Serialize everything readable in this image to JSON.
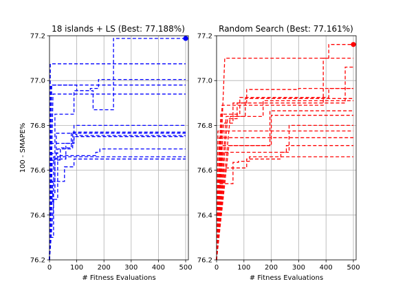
{
  "figure": {
    "background": "#ffffff"
  },
  "chart_data": [
    {
      "type": "line",
      "title": "18 islands + LS (Best: 77.188%)",
      "xlabel": "# Fitness Evaluations",
      "ylabel": "100 - SMAPE%",
      "xlim": [
        0,
        510
      ],
      "ylim": [
        76.2,
        77.2
      ],
      "xticks": [
        0,
        100,
        200,
        300,
        400,
        500
      ],
      "yticks": [
        76.2,
        76.4,
        76.6,
        76.8,
        77.0,
        77.2
      ],
      "ytick_labels": [
        "76.2",
        "76.4",
        "76.6",
        "76.8",
        "77.0",
        "77.2"
      ],
      "grid": true,
      "line_style": "dashed",
      "color": "#0000ff",
      "best_marker": {
        "x": 500,
        "y": 77.188
      },
      "series": [
        {
          "x": [
            0,
            3,
            500
          ],
          "y": [
            76.2,
            77.075,
            77.075
          ]
        },
        {
          "x": [
            0,
            5,
            180,
            180,
            500
          ],
          "y": [
            76.2,
            76.98,
            76.98,
            77.005,
            77.005
          ]
        },
        {
          "x": [
            0,
            8,
            100,
            100,
            150,
            150,
            180,
            180,
            500
          ],
          "y": [
            76.2,
            76.98,
            76.98,
            76.955,
            76.955,
            76.965,
            76.965,
            76.98,
            76.98
          ]
        },
        {
          "x": [
            0,
            13,
            500
          ],
          "y": [
            76.2,
            76.94,
            76.94
          ]
        },
        {
          "x": [
            0,
            6,
            20,
            20,
            90,
            90,
            160,
            160,
            235,
            235,
            500
          ],
          "y": [
            76.2,
            76.55,
            76.55,
            76.85,
            76.85,
            76.955,
            76.955,
            76.87,
            76.87,
            77.188,
            77.188
          ]
        },
        {
          "x": [
            0,
            7,
            30,
            30,
            90,
            90,
            500
          ],
          "y": [
            76.2,
            76.72,
            76.72,
            76.72,
            76.72,
            76.8,
            76.8
          ]
        },
        {
          "x": [
            0,
            4,
            25,
            25,
            500
          ],
          "y": [
            76.2,
            76.65,
            76.65,
            76.765,
            76.765
          ]
        },
        {
          "x": [
            0,
            9,
            30,
            30,
            80,
            80,
            500
          ],
          "y": [
            76.2,
            76.675,
            76.675,
            76.695,
            76.695,
            76.77,
            76.77
          ]
        },
        {
          "x": [
            0,
            10,
            40,
            40,
            85,
            85,
            100,
            100,
            500
          ],
          "y": [
            76.2,
            76.645,
            76.645,
            76.7,
            76.7,
            76.76,
            76.76,
            76.755,
            76.755
          ]
        },
        {
          "x": [
            0,
            2,
            12,
            12,
            20,
            20,
            60,
            60,
            90,
            90,
            500
          ],
          "y": [
            76.2,
            76.45,
            76.45,
            76.5,
            76.5,
            76.65,
            76.65,
            76.72,
            76.72,
            76.75,
            76.75
          ]
        },
        {
          "x": [
            0,
            16,
            30,
            30,
            170,
            170,
            185,
            185,
            500
          ],
          "y": [
            76.2,
            76.47,
            76.47,
            76.665,
            76.665,
            76.68,
            76.68,
            76.695,
            76.695
          ]
        },
        {
          "x": [
            0,
            12,
            35,
            35,
            55,
            55,
            90,
            90,
            500
          ],
          "y": [
            76.2,
            76.55,
            76.55,
            76.55,
            76.55,
            76.615,
            76.615,
            76.65,
            76.65
          ]
        },
        {
          "x": [
            0,
            3,
            15,
            15,
            500
          ],
          "y": [
            76.2,
            76.3,
            76.3,
            76.66,
            76.66
          ]
        }
      ]
    },
    {
      "type": "line",
      "title": "Random Search (Best: 77.161%)",
      "xlabel": "# Fitness Evaluations",
      "ylabel": "",
      "xlim": [
        0,
        510
      ],
      "ylim": [
        76.2,
        77.2
      ],
      "xticks": [
        0,
        100,
        200,
        300,
        400,
        500
      ],
      "yticks": [
        76.2,
        76.4,
        76.6,
        76.8,
        77.0,
        77.2
      ],
      "ytick_labels": [
        "76.2",
        "76.4",
        "76.6",
        "76.8",
        "77.0",
        "77.2"
      ],
      "grid": true,
      "line_style": "dashed",
      "color": "#ff0000",
      "best_marker": {
        "x": 500,
        "y": 77.161
      },
      "series": [
        {
          "x": [
            0,
            20,
            390,
            390,
            410,
            410,
            500
          ],
          "y": [
            76.2,
            76.89,
            76.89,
            77.1,
            77.1,
            77.161,
            77.161
          ]
        },
        {
          "x": [
            0,
            30,
            500
          ],
          "y": [
            76.2,
            77.1,
            77.1
          ]
        },
        {
          "x": [
            0,
            40,
            75,
            75,
            110,
            110,
            300,
            300,
            500
          ],
          "y": [
            76.2,
            76.83,
            76.83,
            76.9,
            76.9,
            76.96,
            76.96,
            76.965,
            76.965
          ]
        },
        {
          "x": [
            0,
            25,
            60,
            60,
            470,
            470,
            500
          ],
          "y": [
            76.2,
            76.81,
            76.81,
            76.9,
            76.9,
            77.06,
            77.06
          ]
        },
        {
          "x": [
            0,
            15,
            85,
            85,
            410,
            410,
            500
          ],
          "y": [
            76.2,
            76.85,
            76.85,
            76.925,
            76.925,
            76.965,
            76.965
          ]
        },
        {
          "x": [
            0,
            50,
            105,
            105,
            500
          ],
          "y": [
            76.2,
            76.84,
            76.84,
            76.92,
            76.92
          ]
        },
        {
          "x": [
            0,
            35,
            170,
            170,
            500
          ],
          "y": [
            76.2,
            76.84,
            76.84,
            76.91,
            76.91
          ]
        },
        {
          "x": [
            0,
            45,
            195,
            195,
            500
          ],
          "y": [
            76.2,
            76.71,
            76.71,
            76.865,
            76.865
          ]
        },
        {
          "x": [
            0,
            18,
            200,
            200,
            500
          ],
          "y": [
            76.2,
            76.71,
            76.71,
            76.845,
            76.845
          ]
        },
        {
          "x": [
            0,
            22,
            265,
            265,
            500
          ],
          "y": [
            76.2,
            76.68,
            76.68,
            76.8,
            76.8
          ]
        },
        {
          "x": [
            0,
            10,
            500
          ],
          "y": [
            76.2,
            76.745,
            76.745
          ]
        },
        {
          "x": [
            0,
            28,
            110,
            110,
            235,
            235,
            255,
            255,
            500
          ],
          "y": [
            76.2,
            76.61,
            76.61,
            76.65,
            76.65,
            76.68,
            76.68,
            76.71,
            76.71
          ]
        },
        {
          "x": [
            0,
            8,
            60,
            60,
            80,
            80,
            120,
            120,
            500
          ],
          "y": [
            76.2,
            76.54,
            76.54,
            76.635,
            76.635,
            76.64,
            76.64,
            76.66,
            76.66
          ]
        },
        {
          "x": [
            0,
            5,
            500
          ],
          "y": [
            76.2,
            76.775,
            76.775
          ]
        }
      ]
    }
  ]
}
